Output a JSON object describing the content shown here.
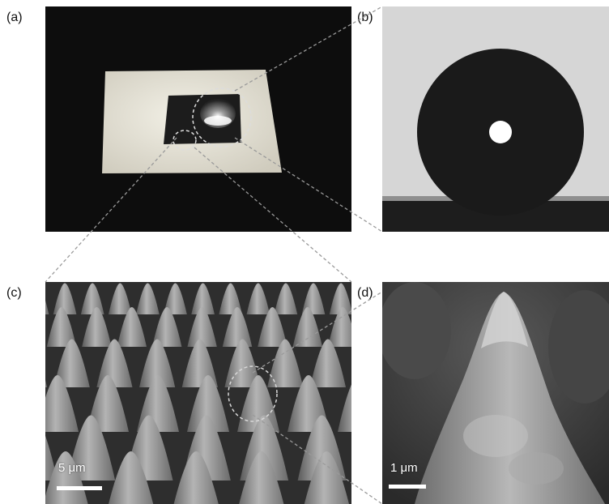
{
  "labels": {
    "a": "(a)",
    "b": "(b)",
    "c": "(c)",
    "d": "(d)"
  },
  "scale_bars": {
    "c": "5 μm",
    "d": "1 μm"
  },
  "colors": {
    "photo_background": "#0d0d0d",
    "substrate": "#e6e4da",
    "droplet": "#1a1a1a",
    "contact_angle_background": "#d6d6d6",
    "sem_gray": "#8a8a8a",
    "connector": "#9a9a9a"
  }
}
